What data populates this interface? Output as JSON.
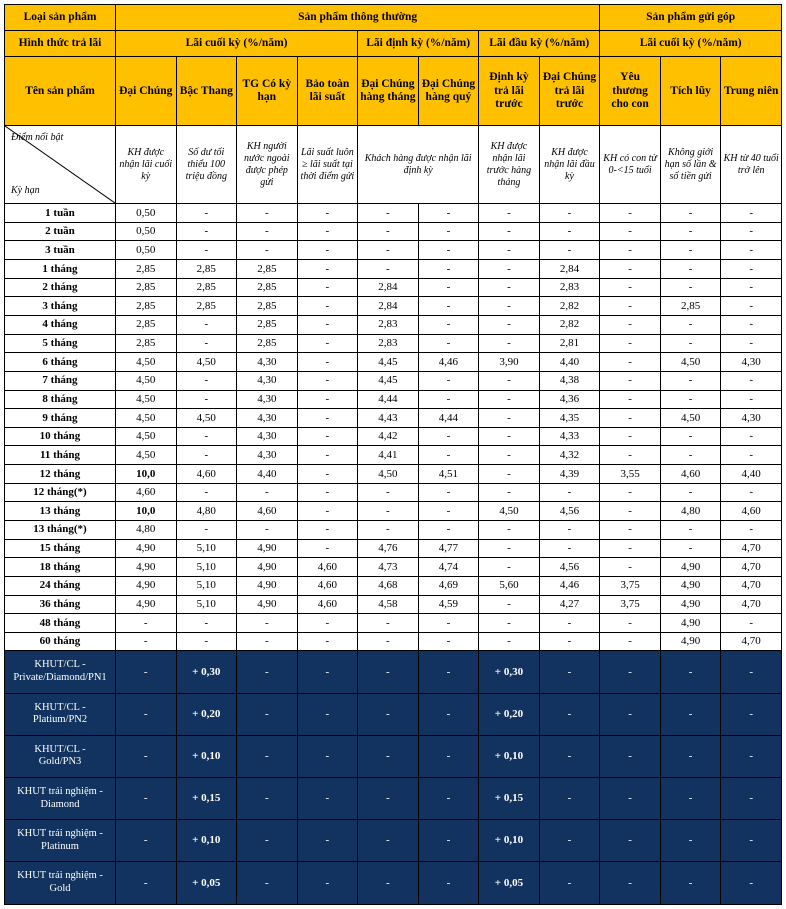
{
  "headers": {
    "loai_sp": "Loại sản phẩm",
    "sp_thong_thuong": "Sản phẩm thông thường",
    "sp_gui_gop": "Sản phẩm gửi góp",
    "hinh_thuc": "Hình thức trả lãi",
    "lai_cuoi_ky": "Lãi cuối kỳ (%/năm)",
    "lai_dinh_ky": "Lãi định kỳ (%/năm)",
    "lai_dau_ky": "Lãi đầu kỳ (%/năm)",
    "lai_cuoi_ky2": "Lãi cuối kỳ (%/năm)",
    "ten_sp": "Tên sản phẩm",
    "diem_noi_bat": "Điểm nổi bật",
    "ky_han": "Kỳ hạn"
  },
  "columns": [
    {
      "name": "Đại Chúng",
      "note": "KH được nhận lãi cuối kỳ"
    },
    {
      "name": "Bậc Thang",
      "note": "Số dư tối thiểu 100 triệu đồng"
    },
    {
      "name": "TG Có kỳ hạn",
      "note": "KH người nước ngoài được phép gửi"
    },
    {
      "name": "Bảo toàn lãi suất",
      "note": "Lãi suất luôn ≥ lãi suất tại thời điểm gửi"
    },
    {
      "name": "Đại Chúng hàng tháng",
      "note": ""
    },
    {
      "name": "Đại Chúng hàng quý",
      "note": ""
    },
    {
      "name": "Định kỳ trả lãi trước",
      "note": "KH được nhận lãi trước hàng tháng"
    },
    {
      "name": "Đại Chúng trả lãi trước",
      "note": "KH được nhận lãi đầu kỳ"
    },
    {
      "name": "Yêu thương cho con",
      "note": "KH có con từ 0-<15 tuổi"
    },
    {
      "name": "Tích lũy",
      "note": "Không giới hạn số lần & số tiền gửi"
    },
    {
      "name": "Trung niên",
      "note": "KH từ 40 tuổi trở lên"
    }
  ],
  "merged_note_45": "Khách hàng được nhận lãi định kỳ",
  "rows": [
    {
      "term": "1 tuần",
      "v": [
        "0,50",
        "-",
        "-",
        "-",
        "-",
        "-",
        "-",
        "-",
        "-",
        "-",
        "-"
      ]
    },
    {
      "term": "2 tuần",
      "v": [
        "0,50",
        "-",
        "-",
        "-",
        "-",
        "-",
        "-",
        "-",
        "-",
        "-",
        "-"
      ]
    },
    {
      "term": "3 tuần",
      "v": [
        "0,50",
        "-",
        "-",
        "-",
        "-",
        "-",
        "-",
        "-",
        "-",
        "-",
        "-"
      ]
    },
    {
      "term": "1 tháng",
      "v": [
        "2,85",
        "2,85",
        "2,85",
        "-",
        "-",
        "-",
        "-",
        "2,84",
        "-",
        "-",
        "-"
      ]
    },
    {
      "term": "2 tháng",
      "v": [
        "2,85",
        "2,85",
        "2,85",
        "-",
        "2,84",
        "-",
        "-",
        "2,83",
        "-",
        "-",
        "-"
      ]
    },
    {
      "term": "3 tháng",
      "v": [
        "2,85",
        "2,85",
        "2,85",
        "-",
        "2,84",
        "-",
        "-",
        "2,82",
        "-",
        "2,85",
        "-"
      ]
    },
    {
      "term": "4 tháng",
      "v": [
        "2,85",
        "-",
        "2,85",
        "-",
        "2,83",
        "-",
        "-",
        "2,82",
        "-",
        "-",
        "-"
      ]
    },
    {
      "term": "5 tháng",
      "v": [
        "2,85",
        "-",
        "2,85",
        "-",
        "2,83",
        "-",
        "-",
        "2,81",
        "-",
        "-",
        "-"
      ]
    },
    {
      "term": "6 tháng",
      "v": [
        "4,50",
        "4,50",
        "4,30",
        "-",
        "4,45",
        "4,46",
        "3,90",
        "4,40",
        "-",
        "4,50",
        "4,30"
      ]
    },
    {
      "term": "7 tháng",
      "v": [
        "4,50",
        "-",
        "4,30",
        "-",
        "4,45",
        "-",
        "-",
        "4,38",
        "-",
        "-",
        "-"
      ]
    },
    {
      "term": "8 tháng",
      "v": [
        "4,50",
        "-",
        "4,30",
        "-",
        "4,44",
        "-",
        "-",
        "4,36",
        "-",
        "-",
        "-"
      ]
    },
    {
      "term": "9 tháng",
      "v": [
        "4,50",
        "4,50",
        "4,30",
        "-",
        "4,43",
        "4,44",
        "-",
        "4,35",
        "-",
        "4,50",
        "4,30"
      ]
    },
    {
      "term": "10 tháng",
      "v": [
        "4,50",
        "-",
        "4,30",
        "-",
        "4,42",
        "-",
        "-",
        "4,33",
        "-",
        "-",
        "-"
      ]
    },
    {
      "term": "11 tháng",
      "v": [
        "4,50",
        "-",
        "4,30",
        "-",
        "4,41",
        "-",
        "-",
        "4,32",
        "-",
        "-",
        "-"
      ]
    },
    {
      "term": "12 tháng",
      "v": [
        "10,0",
        "4,60",
        "4,40",
        "-",
        "4,50",
        "4,51",
        "-",
        "4,39",
        "3,55",
        "4,60",
        "4,40"
      ]
    },
    {
      "term": "12 tháng(*)",
      "v": [
        "4,60",
        "-",
        "-",
        "-",
        "-",
        "-",
        "-",
        "-",
        "-",
        "-",
        "-"
      ]
    },
    {
      "term": "13 tháng",
      "v": [
        "10,0",
        "4,80",
        "4,60",
        "-",
        "-",
        "-",
        "4,50",
        "4,56",
        "-",
        "4,80",
        "4,60"
      ]
    },
    {
      "term": "13 tháng(*)",
      "v": [
        "4,80",
        "-",
        "-",
        "-",
        "-",
        "-",
        "-",
        "-",
        "-",
        "-",
        "-"
      ]
    },
    {
      "term": "15 tháng",
      "v": [
        "4,90",
        "5,10",
        "4,90",
        "-",
        "4,76",
        "4,77",
        "-",
        "-",
        "-",
        "-",
        "4,70"
      ]
    },
    {
      "term": "18 tháng",
      "v": [
        "4,90",
        "5,10",
        "4,90",
        "4,60",
        "4,73",
        "4,74",
        "-",
        "4,56",
        "-",
        "4,90",
        "4,70"
      ]
    },
    {
      "term": "24 tháng",
      "v": [
        "4,90",
        "5,10",
        "4,90",
        "4,60",
        "4,68",
        "4,69",
        "5,60",
        "4,46",
        "3,75",
        "4,90",
        "4,70"
      ]
    },
    {
      "term": "36 tháng",
      "v": [
        "4,90",
        "5,10",
        "4,90",
        "4,60",
        "4,58",
        "4,59",
        "-",
        "4,27",
        "3,75",
        "4,90",
        "4,70"
      ]
    },
    {
      "term": "48 tháng",
      "v": [
        "-",
        "-",
        "-",
        "-",
        "-",
        "-",
        "-",
        "-",
        "-",
        "4,90",
        "-"
      ]
    },
    {
      "term": "60 tháng",
      "v": [
        "-",
        "-",
        "-",
        "-",
        "-",
        "-",
        "-",
        "-",
        "-",
        "4,90",
        "4,70"
      ]
    }
  ],
  "navy_rows": [
    {
      "label": "KHUT/CL - Private/Diamond/PN1",
      "v": [
        "-",
        "+ 0,30",
        "-",
        "-",
        "-",
        "-",
        "+ 0,30",
        "-",
        "-",
        "-",
        "-"
      ]
    },
    {
      "label": "KHUT/CL  - Platium/PN2",
      "v": [
        "-",
        "+ 0,20",
        "-",
        "-",
        "-",
        "-",
        "+ 0,20",
        "-",
        "-",
        "-",
        "-"
      ]
    },
    {
      "label": "KHUT/CL – Gold/PN3",
      "v": [
        "-",
        "+ 0,10",
        "-",
        "-",
        "-",
        "-",
        "+ 0,10",
        "-",
        "-",
        "-",
        "-"
      ]
    },
    {
      "label": "KHUT trải nghiệm - Diamond",
      "v": [
        "-",
        "+ 0,15",
        "-",
        "-",
        "-",
        "-",
        "+ 0,15",
        "-",
        "-",
        "-",
        "-"
      ]
    },
    {
      "label": "KHUT trải nghiệm - Platinum",
      "v": [
        "-",
        "+ 0,10",
        "-",
        "-",
        "-",
        "-",
        "+ 0,10",
        "-",
        "-",
        "-",
        "-"
      ]
    },
    {
      "label": "KHUT trải nghiệm - Gold",
      "v": [
        "-",
        "+ 0,05",
        "-",
        "-",
        "-",
        "-",
        "+ 0,05",
        "-",
        "-",
        "-",
        "-"
      ]
    }
  ],
  "colors": {
    "header_bg": "#ffc000",
    "navy_bg": "#12335f",
    "text": "#000000",
    "navy_text": "#ffffff"
  }
}
